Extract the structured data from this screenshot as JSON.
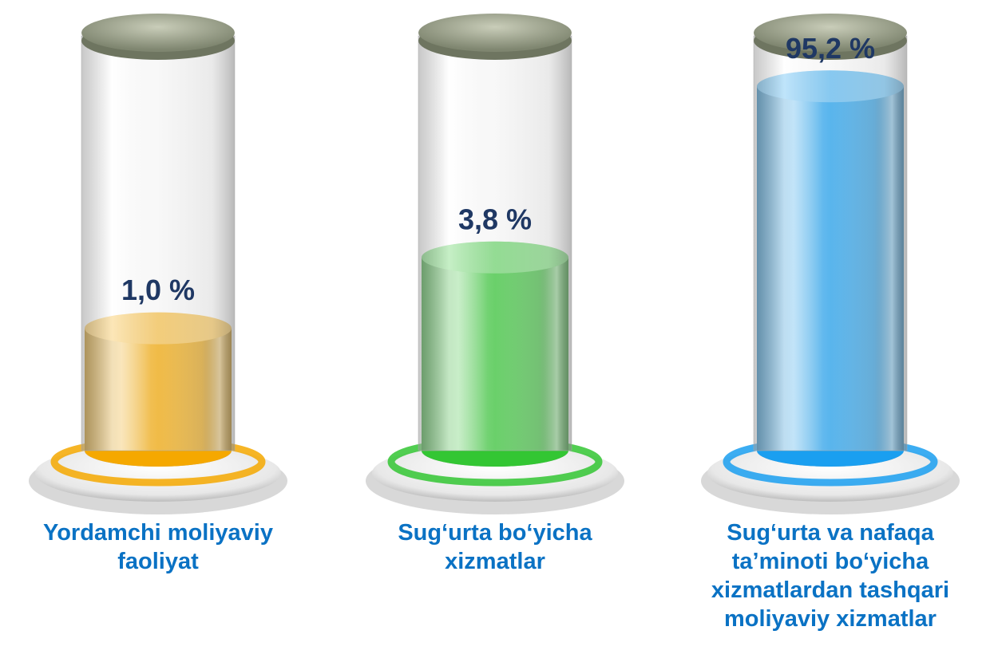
{
  "chart_data": {
    "type": "cylinder",
    "categories": [
      "Yordamchi moliyaviy faoliyat",
      "Sug‘urta bo‘yicha xizmatlar",
      "Sug‘urta va nafaqa ta’minoti bo‘yicha xizmatlardan tashqari moliyaviy xizmatlar"
    ],
    "values": [
      1.0,
      3.8,
      95.2
    ],
    "value_labels": [
      "1,0 %",
      "3,8 %",
      "95,2 %"
    ],
    "colors": [
      "#f5a800",
      "#33c633",
      "#1a9ff0"
    ],
    "log_scale": true,
    "ylim": [
      0.1,
      100
    ]
  }
}
